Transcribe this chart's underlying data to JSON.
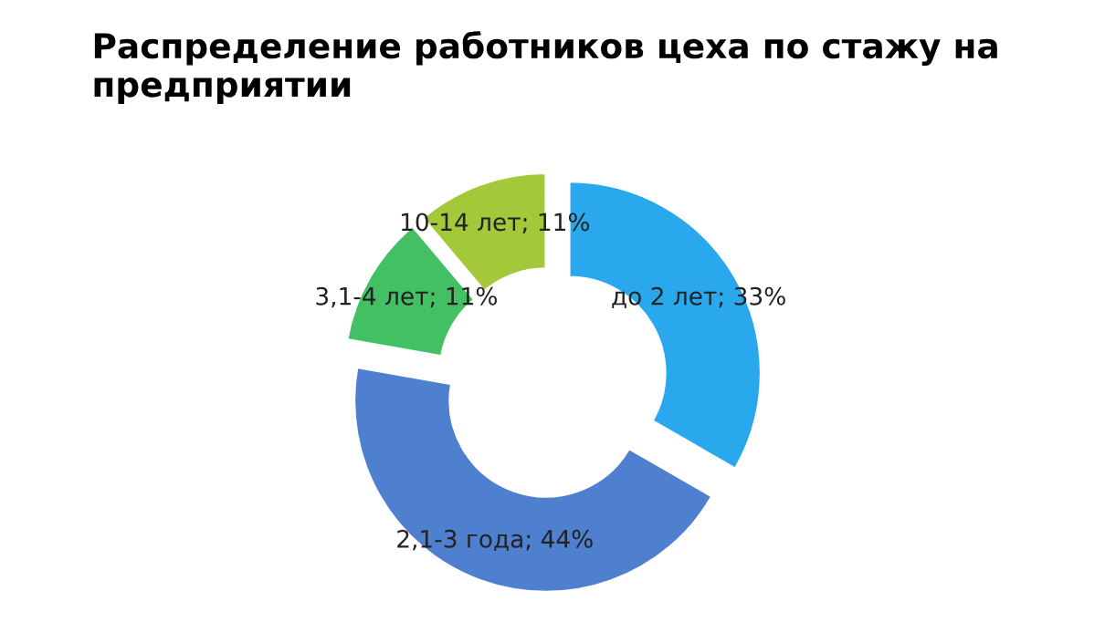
{
  "chart_data": {
    "type": "donut",
    "title": "Распределение работников цеха по стажу на предприятии",
    "categories": [
      "до 2 лет",
      "2,1-3 года",
      "3,1-4 лет",
      "10-14 лет"
    ],
    "values": [
      33,
      44,
      11,
      11
    ],
    "value_labels": [
      "33%",
      "44%",
      "11%",
      "11%"
    ],
    "colors": [
      "#2aa8ee",
      "#4f7fcf",
      "#44c064",
      "#a3c83a"
    ],
    "legend": false
  }
}
